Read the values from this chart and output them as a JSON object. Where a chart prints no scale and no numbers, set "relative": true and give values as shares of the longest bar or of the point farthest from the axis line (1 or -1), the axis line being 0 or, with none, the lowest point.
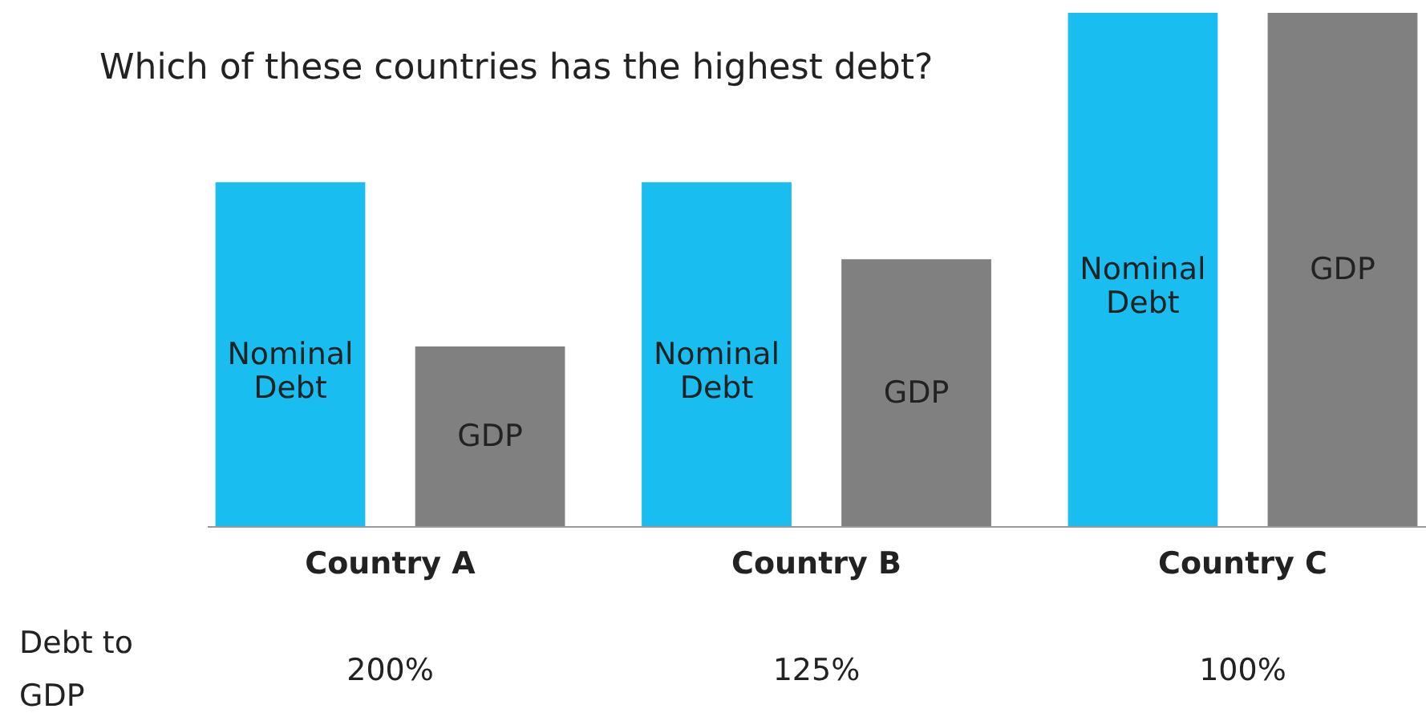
{
  "chart_data": {
    "type": "bar",
    "title": "Which of these countries has the highest debt?",
    "relative": true,
    "legend": false,
    "categories": [
      "Country A",
      "Country B",
      "Country C"
    ],
    "series": [
      {
        "name": "Nominal Debt",
        "color": "#19bdf0",
        "values": [
          0.67,
          0.67,
          1
        ]
      },
      {
        "name": "GDP",
        "color": "#808080",
        "values": [
          0.35,
          0.52,
          1
        ]
      }
    ],
    "annotations": [
      "Debt to GDP",
      "200%",
      "125%",
      "100%"
    ]
  }
}
